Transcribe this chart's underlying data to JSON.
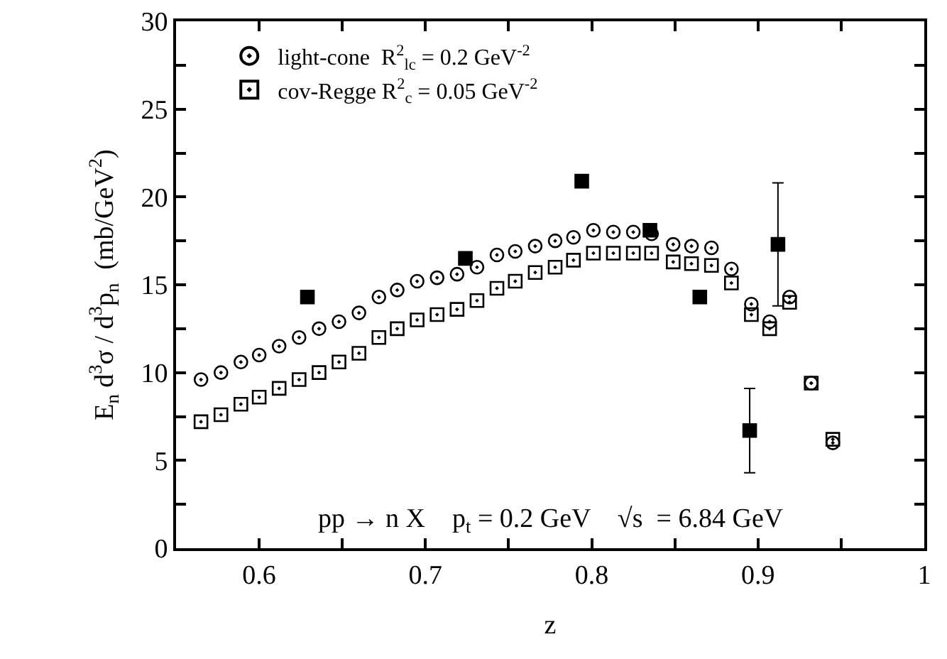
{
  "chart_data": {
    "type": "scatter",
    "xlabel": "z",
    "ylabel": "E$_{n}$ d$^{3}$σ / d$^{3}$p$_{n}$  (mb/GeV$^{2}$)",
    "annotations": [
      "pp → n X    p$_{t}$ = 0.2 GeV    √s  = 6.84 GeV"
    ],
    "xlim": [
      0.55,
      1
    ],
    "ylim": [
      0,
      30
    ],
    "xticks": [
      {
        "value": 0.55,
        "label": null
      },
      0.6,
      {
        "value": 0.65,
        "label": null
      },
      0.7,
      {
        "value": 0.75,
        "label": null
      },
      0.8,
      {
        "value": 0.85,
        "label": null
      },
      0.9,
      {
        "value": 0.95,
        "label": null
      },
      1
    ],
    "yticks": [
      0,
      {
        "value": 2.5,
        "label": null
      },
      5,
      {
        "value": 7.5,
        "label": null
      },
      10,
      {
        "value": 12.5,
        "label": null
      },
      15,
      {
        "value": 17.5,
        "label": null
      },
      20,
      {
        "value": 22.5,
        "label": null
      },
      25,
      {
        "value": 27.5,
        "label": null
      },
      30
    ],
    "grid": false,
    "legend": "top left",
    "series": [
      {
        "name": "light-cone  R$^{2}$$_{lc}$ = 0.2 GeV$^{-2}$",
        "color": "#000000",
        "marker": "circle",
        "x": [
          0.565,
          0.577,
          0.589,
          0.6,
          0.612,
          0.624,
          0.636,
          0.648,
          0.66,
          0.672,
          0.683,
          0.695,
          0.707,
          0.719,
          0.731,
          0.743,
          0.754,
          0.766,
          0.778,
          0.789,
          0.801,
          0.813,
          0.825,
          0.836,
          0.849,
          0.86,
          0.872,
          0.884,
          0.896,
          0.907,
          0.919,
          0.932,
          0.945
        ],
        "values": [
          9.6,
          10.0,
          10.6,
          11.0,
          11.5,
          12.0,
          12.5,
          12.9,
          13.4,
          14.3,
          14.7,
          15.2,
          15.4,
          15.6,
          16.0,
          16.7,
          16.9,
          17.2,
          17.5,
          17.7,
          18.1,
          18.0,
          18.0,
          17.9,
          17.3,
          17.2,
          17.1,
          15.9,
          13.9,
          12.9,
          14.3,
          9.4,
          6.0
        ]
      },
      {
        "name": "cov-Regge R$^{2}$$_{c}$ = 0.05 GeV$^{-2}$",
        "color": "#000000",
        "marker": "square",
        "x": [
          0.565,
          0.577,
          0.589,
          0.6,
          0.612,
          0.624,
          0.636,
          0.648,
          0.66,
          0.672,
          0.683,
          0.695,
          0.707,
          0.719,
          0.731,
          0.743,
          0.754,
          0.766,
          0.778,
          0.789,
          0.801,
          0.813,
          0.825,
          0.836,
          0.849,
          0.86,
          0.872,
          0.884,
          0.896,
          0.907,
          0.919,
          0.932,
          0.945
        ],
        "values": [
          7.2,
          7.6,
          8.2,
          8.6,
          9.1,
          9.6,
          10.0,
          10.6,
          11.1,
          12.0,
          12.5,
          13.0,
          13.3,
          13.6,
          14.1,
          14.8,
          15.2,
          15.7,
          16.0,
          16.4,
          16.8,
          16.8,
          16.8,
          16.8,
          16.3,
          16.2,
          16.1,
          15.1,
          13.3,
          12.5,
          14.0,
          9.4,
          6.2
        ]
      },
      {
        "color": "#000000",
        "marker": "square",
        "x": [
          0.629,
          0.724,
          0.794,
          0.835,
          0.865,
          0.895,
          0.912
        ],
        "values": [
          14.3,
          16.5,
          20.9,
          18.1,
          14.3,
          6.7,
          17.3
        ],
        "errors": [
          null,
          null,
          null,
          null,
          null,
          [
            4.3,
            9.1
          ],
          [
            13.8,
            20.8
          ]
        ]
      }
    ]
  }
}
